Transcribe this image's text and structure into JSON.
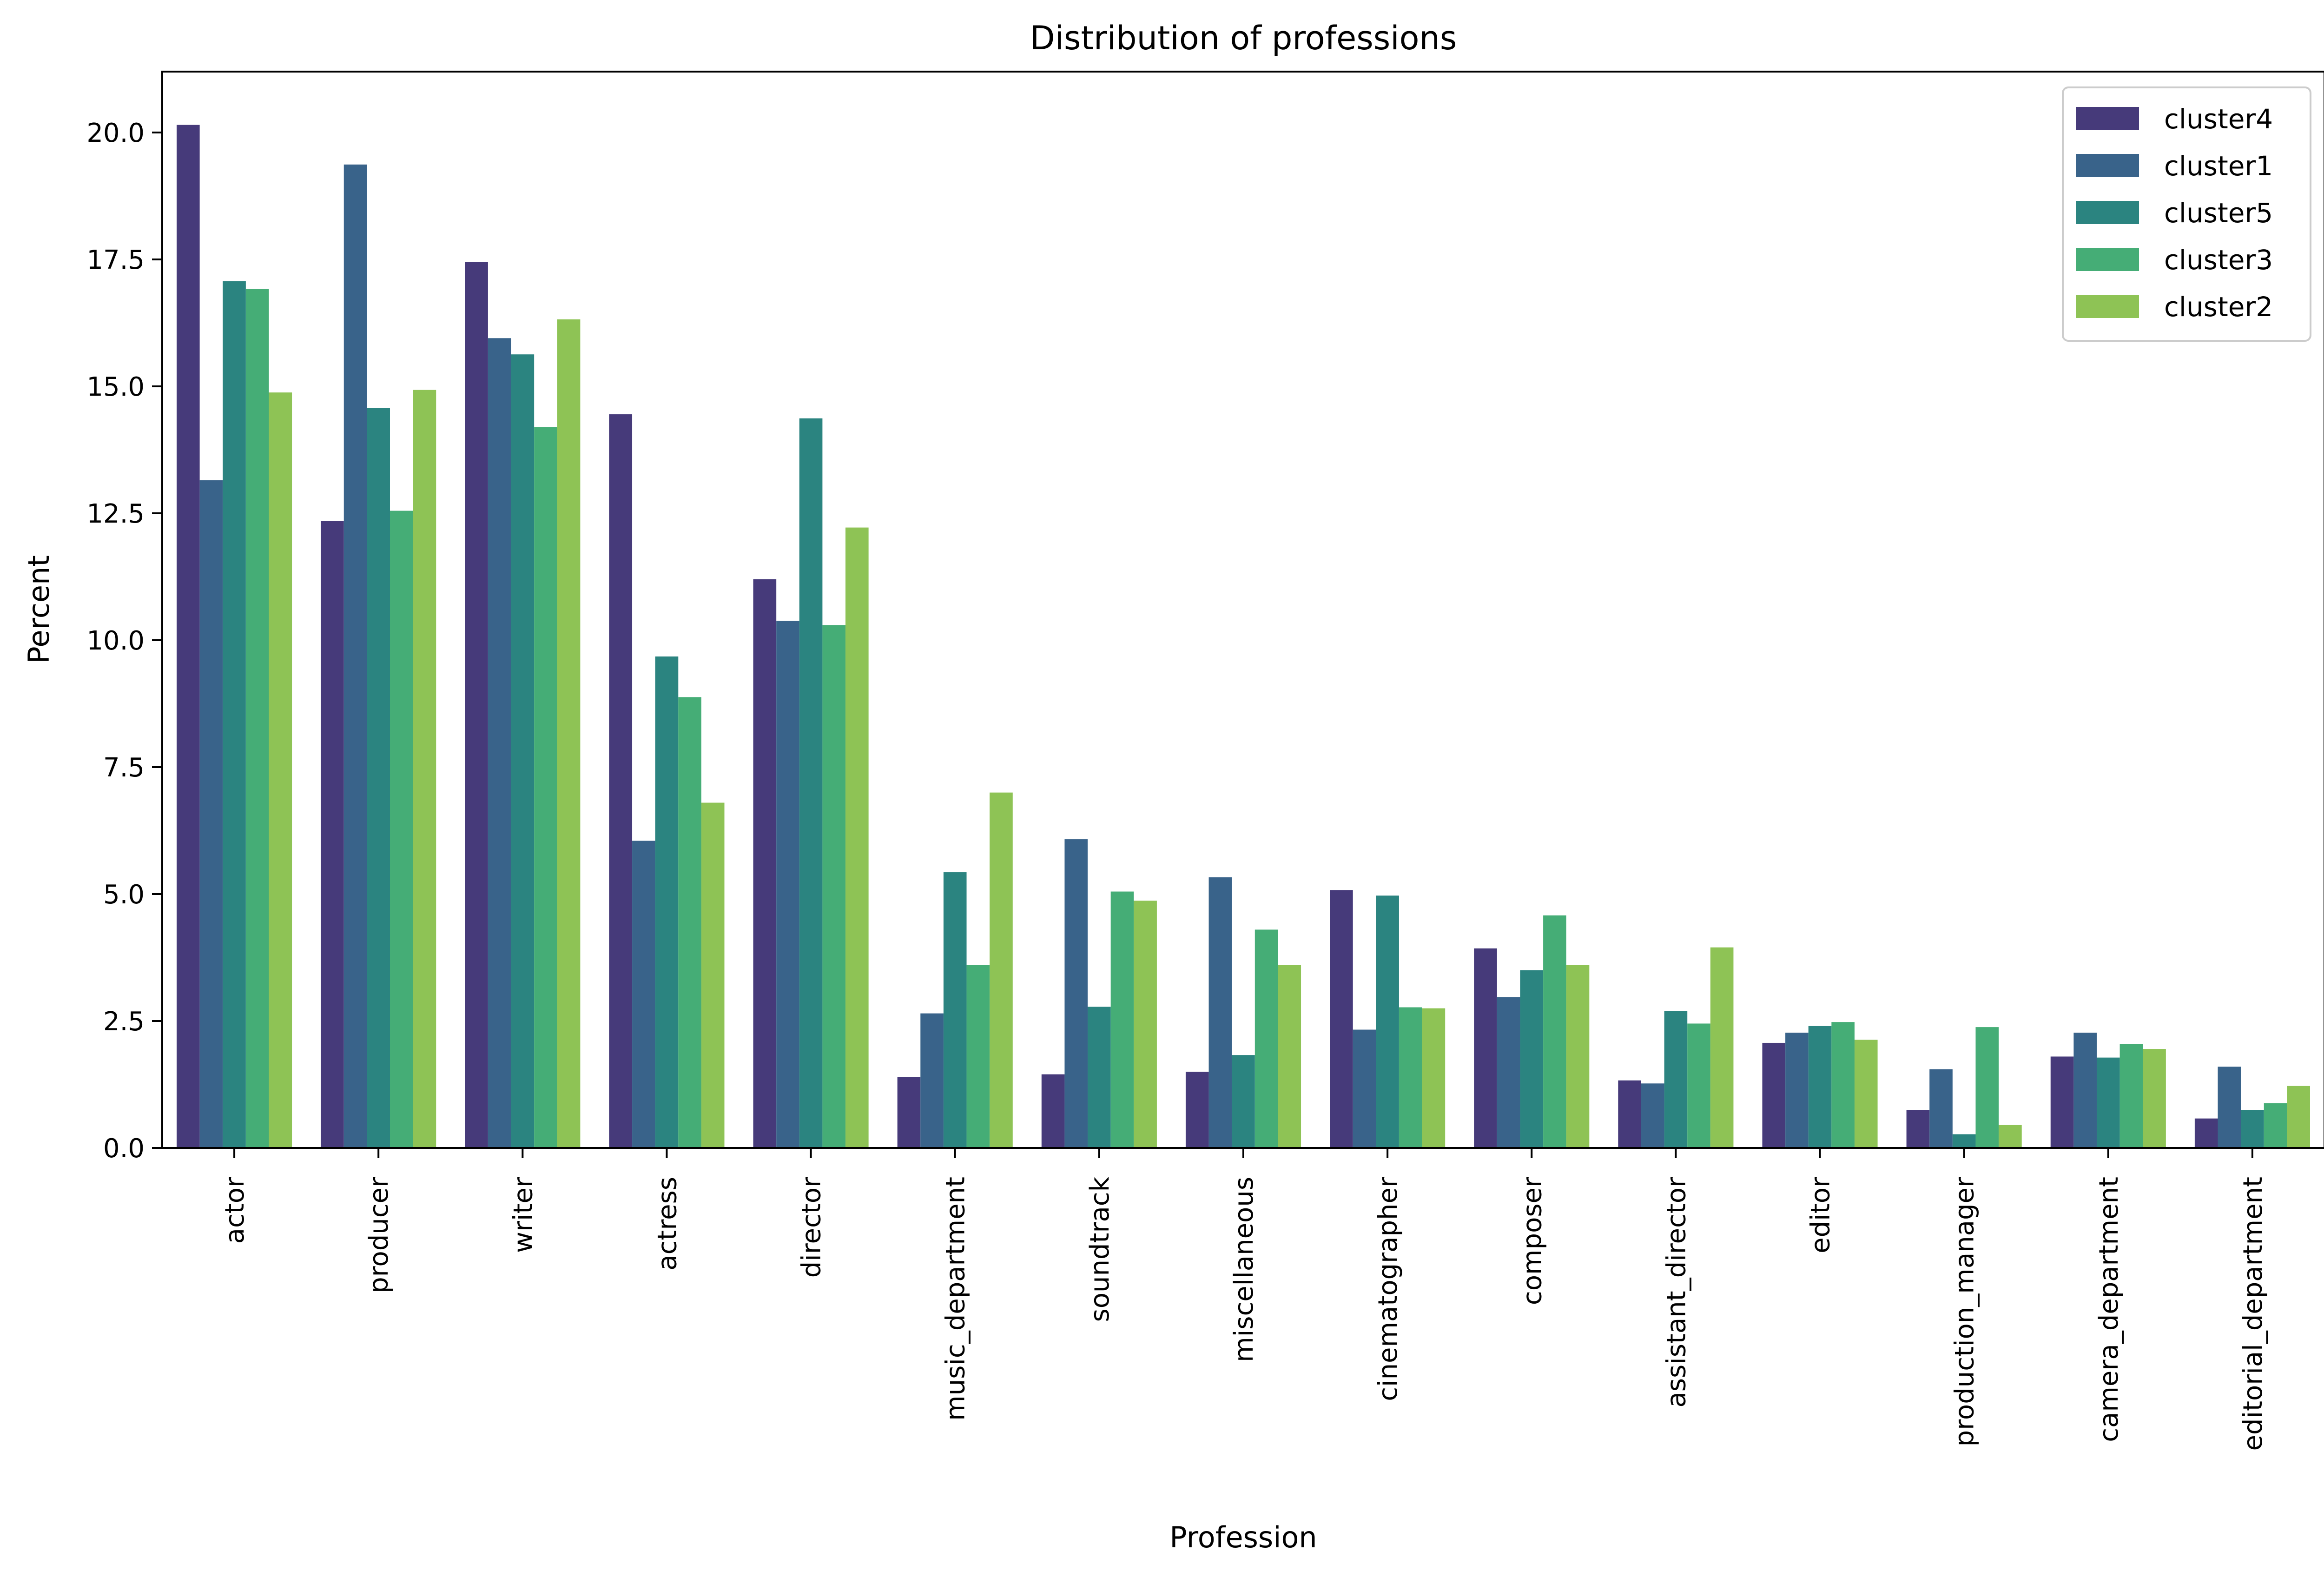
{
  "chart_data": {
    "type": "bar",
    "title": "Distribution of professions",
    "xlabel": "Profession",
    "ylabel": "Percent",
    "ylim": [
      0,
      21.2
    ],
    "yticks": [
      "0.0",
      "2.5",
      "5.0",
      "7.5",
      "10.0",
      "12.5",
      "15.0",
      "17.5",
      "20.0"
    ],
    "grid": false,
    "legend_position": "top-right",
    "categories": [
      "actor",
      "producer",
      "writer",
      "actress",
      "director",
      "music_department",
      "soundtrack",
      "miscellaneous",
      "cinematographer",
      "composer",
      "assistant_director",
      "editor",
      "production_manager",
      "camera_department",
      "editorial_department"
    ],
    "series": [
      {
        "name": "cluster4",
        "color": "#463a7a",
        "values": [
          20.15,
          12.35,
          17.45,
          14.45,
          11.2,
          1.4,
          1.45,
          1.5,
          5.08,
          3.93,
          1.33,
          2.07,
          0.75,
          1.8,
          0.58
        ]
      },
      {
        "name": "cluster1",
        "color": "#39638a",
        "values": [
          13.15,
          19.37,
          15.95,
          6.05,
          10.38,
          2.65,
          6.08,
          5.33,
          2.33,
          2.97,
          1.27,
          2.27,
          1.55,
          2.27,
          1.6
        ]
      },
      {
        "name": "cluster5",
        "color": "#2b8480",
        "values": [
          17.07,
          14.57,
          15.63,
          9.68,
          14.37,
          5.43,
          2.78,
          1.83,
          4.97,
          3.5,
          2.7,
          2.4,
          0.27,
          1.78,
          0.75
        ]
      },
      {
        "name": "cluster3",
        "color": "#45ad76",
        "values": [
          16.92,
          12.55,
          14.2,
          8.88,
          10.3,
          3.6,
          5.05,
          4.3,
          2.77,
          4.58,
          2.45,
          2.48,
          2.38,
          2.05,
          0.88
        ]
      },
      {
        "name": "cluster2",
        "color": "#8ec355",
        "values": [
          14.88,
          14.93,
          16.32,
          6.8,
          12.22,
          7.0,
          4.87,
          3.6,
          2.75,
          3.6,
          3.95,
          2.13,
          0.45,
          1.95,
          1.22
        ]
      }
    ]
  }
}
